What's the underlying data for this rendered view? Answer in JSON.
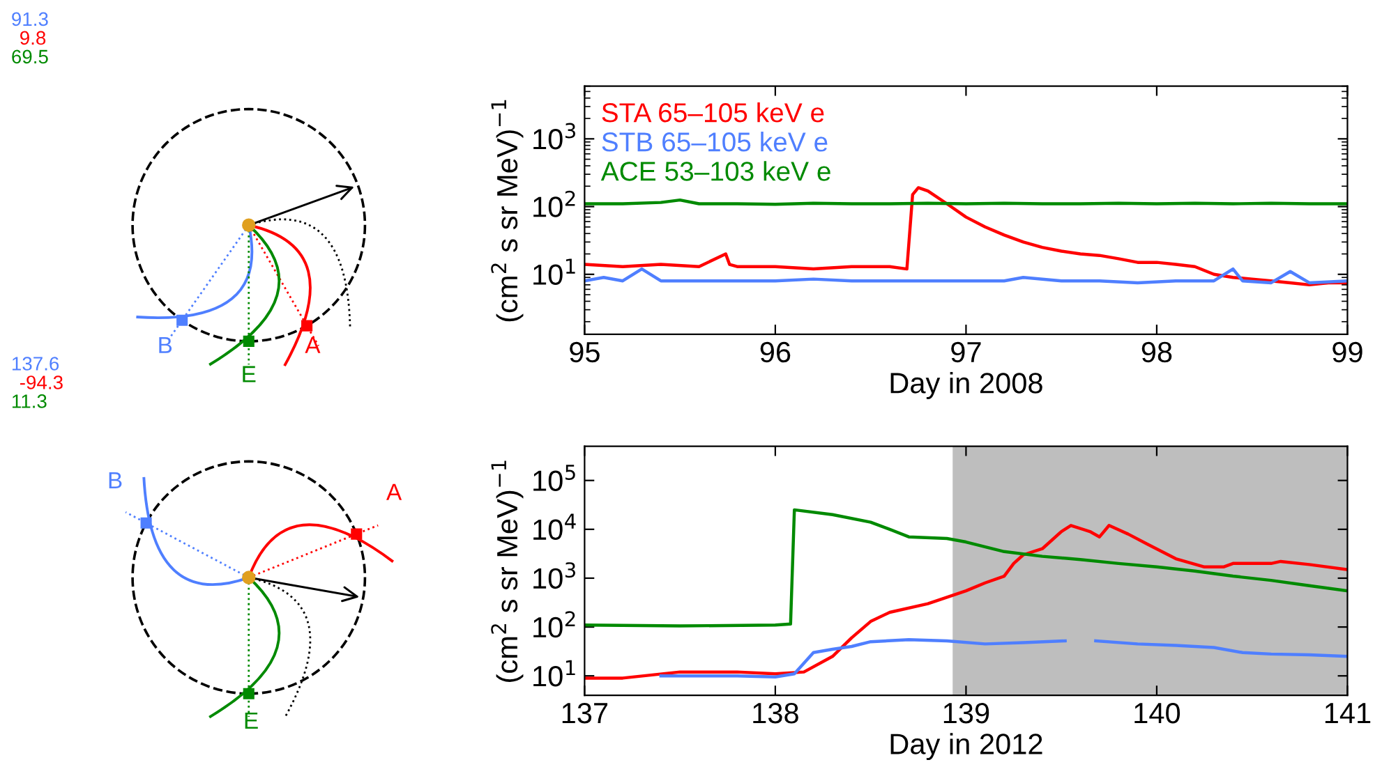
{
  "chart_data": [
    {
      "type": "line",
      "xlabel": "Day in 2008",
      "ylabel": "(cm$^{2}$ s sr MeV)$^{−1}$",
      "log": true,
      "legend": "top left",
      "xlim": [
        95,
        99
      ],
      "xticks": [
        95,
        96,
        97,
        98,
        99
      ],
      "ylim": [
        1.3,
        6000
      ],
      "yticks": [
        {
          "value": 10,
          "label": "10$^{1}$"
        },
        {
          "value": 100,
          "label": "10$^{2}$"
        },
        {
          "value": 1000,
          "label": "10$^{3}$"
        }
      ],
      "annotations": [
        "91.3",
        "9.8",
        "69.5",
        "B",
        "E",
        "A"
      ],
      "series": [
        {
          "name": "STA 65–105 keV e",
          "color": "#ff0000",
          "x": [
            95.0,
            95.2,
            95.4,
            95.6,
            95.74,
            95.76,
            95.8,
            96.0,
            96.2,
            96.4,
            96.6,
            96.69,
            96.72,
            96.75,
            96.8,
            96.9,
            97.0,
            97.1,
            97.2,
            97.3,
            97.4,
            97.5,
            97.6,
            97.7,
            97.8,
            97.9,
            98.0,
            98.1,
            98.2,
            98.3,
            98.4,
            98.5,
            98.6,
            98.7,
            98.8,
            98.9,
            99.0
          ],
          "values": [
            14,
            13,
            14,
            13,
            20,
            14,
            13,
            13,
            12,
            13,
            13,
            12,
            150,
            190,
            170,
            110,
            70,
            50,
            38,
            30,
            25,
            22,
            20,
            19,
            17,
            15,
            15,
            14,
            13,
            10,
            9,
            8.5,
            8,
            7.5,
            7,
            7.5,
            7.5
          ]
        },
        {
          "name": "STB 65–105 keV e",
          "color": "#4f7fff",
          "x": [
            95.0,
            95.1,
            95.2,
            95.3,
            95.4,
            95.6,
            95.8,
            96.0,
            96.2,
            96.4,
            96.6,
            96.8,
            97.0,
            97.2,
            97.3,
            97.5,
            97.7,
            97.9,
            98.1,
            98.3,
            98.4,
            98.45,
            98.6,
            98.7,
            98.8,
            99.0
          ],
          "values": [
            8,
            9,
            8,
            12,
            8,
            8,
            8,
            8,
            8.5,
            8,
            8,
            8,
            8,
            8,
            9,
            8,
            8,
            7.5,
            8,
            8,
            12,
            8,
            7.5,
            11,
            7.5,
            8
          ]
        },
        {
          "name": "ACE 53–103 keV e",
          "color": "#008a00",
          "x": [
            95.0,
            95.2,
            95.4,
            95.5,
            95.6,
            95.8,
            96.0,
            96.2,
            96.4,
            96.6,
            96.8,
            97.0,
            97.2,
            97.4,
            97.6,
            97.8,
            98.0,
            98.2,
            98.4,
            98.6,
            98.8,
            99.0
          ],
          "values": [
            110,
            110,
            115,
            125,
            110,
            110,
            108,
            112,
            110,
            110,
            112,
            110,
            112,
            110,
            110,
            112,
            110,
            112,
            110,
            112,
            110,
            110
          ]
        }
      ]
    },
    {
      "type": "line",
      "xlabel": "Day in 2012",
      "ylabel": "(cm$^{2}$ s sr MeV)$^{−1}$",
      "log": true,
      "xlim": [
        137,
        141
      ],
      "xticks": [
        137,
        138,
        139,
        140,
        141
      ],
      "ylim": [
        4,
        500000
      ],
      "yticks": [
        {
          "value": 10,
          "label": "10$^{1}$"
        },
        {
          "value": 100,
          "label": "10$^{2}$"
        },
        {
          "value": 1000,
          "label": "10$^{3}$"
        },
        {
          "value": 10000,
          "label": "10$^{4}$"
        },
        {
          "value": 100000,
          "label": "10$^{5}$"
        }
      ],
      "bands": [
        {
          "axis": "x",
          "from": 138.93,
          "to": 141,
          "color": "#bebebe"
        }
      ],
      "annotations": [
        "137.6",
        "-94.3",
        "11.3",
        "B",
        "A",
        "E"
      ],
      "series": [
        {
          "color": "#ff0000",
          "x": [
            137.0,
            137.2,
            137.5,
            137.8,
            138.0,
            138.15,
            138.3,
            138.4,
            138.5,
            138.6,
            138.8,
            139.0,
            139.1,
            139.2,
            139.25,
            139.3,
            139.4,
            139.5,
            139.55,
            139.65,
            139.7,
            139.75,
            139.85,
            139.95,
            140.1,
            140.25,
            140.35,
            140.4,
            140.6,
            140.65,
            140.8,
            141.0
          ],
          "values": [
            9,
            9,
            12,
            12,
            11,
            12,
            25,
            60,
            130,
            200,
            300,
            550,
            800,
            1100,
            2000,
            3000,
            4000,
            9000,
            12000,
            9000,
            7000,
            12000,
            8000,
            5000,
            2500,
            1700,
            1700,
            2000,
            2000,
            2200,
            1900,
            1500
          ]
        },
        {
          "color": "#4f7fff",
          "x": [
            137.4,
            137.8,
            138.0,
            138.1,
            138.2,
            138.3,
            138.4,
            138.5,
            138.7,
            138.9,
            139.1,
            139.3,
            139.52,
            139.6,
            139.68,
            139.9,
            140.1,
            140.3,
            140.45,
            140.6,
            140.8,
            141.0
          ],
          "values": [
            10,
            10,
            9.5,
            11,
            30,
            35,
            40,
            50,
            55,
            52,
            45,
            48,
            52,
            null,
            52,
            45,
            42,
            38,
            30,
            28,
            27,
            25
          ]
        },
        {
          "color": "#008a00",
          "x": [
            137.0,
            137.5,
            138.0,
            138.08,
            138.1,
            138.3,
            138.5,
            138.6,
            138.7,
            138.9,
            139.0,
            139.2,
            139.4,
            139.6,
            139.8,
            140.0,
            140.2,
            140.4,
            140.6,
            140.8,
            141.0
          ],
          "values": [
            110,
            105,
            110,
            115,
            25000,
            20000,
            14000,
            10000,
            7000,
            6500,
            5500,
            3500,
            2800,
            2400,
            2000,
            1700,
            1400,
            1100,
            900,
            700,
            550
          ]
        }
      ]
    }
  ]
}
